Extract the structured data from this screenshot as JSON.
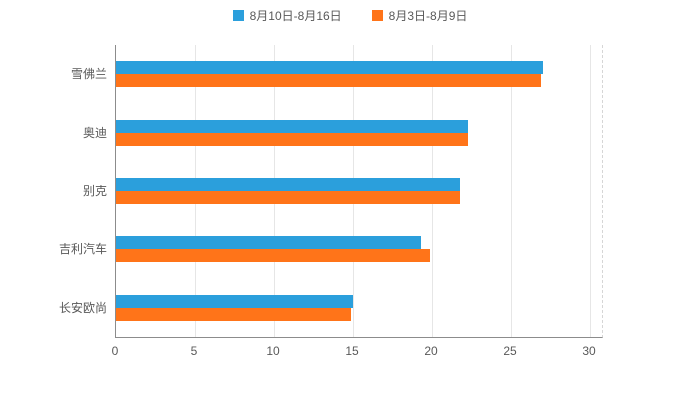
{
  "chart_data": {
    "type": "bar",
    "orientation": "horizontal",
    "title": "",
    "xlabel": "",
    "ylabel": "",
    "categories": [
      "雪佛兰",
      "奥迪",
      "别克",
      "吉利汽车",
      "长安欧尚"
    ],
    "series": [
      {
        "name": "8月10日-8月16日",
        "color": "#2B9FDC",
        "values": [
          27.0,
          22.3,
          21.8,
          19.3,
          15.0
        ]
      },
      {
        "name": "8月3日-8月9日",
        "color": "#FF7419",
        "values": [
          26.9,
          22.3,
          21.8,
          19.9,
          14.9
        ]
      }
    ],
    "xlim": [
      0,
      30.7
    ],
    "xticks": [
      0,
      5,
      10,
      15,
      20,
      25,
      30
    ],
    "grid": true,
    "legend_position": "top"
  },
  "colors": {
    "axis": "#8c8c8c",
    "grid": "#e6e6e6",
    "text": "#595959",
    "background": "#ffffff"
  }
}
